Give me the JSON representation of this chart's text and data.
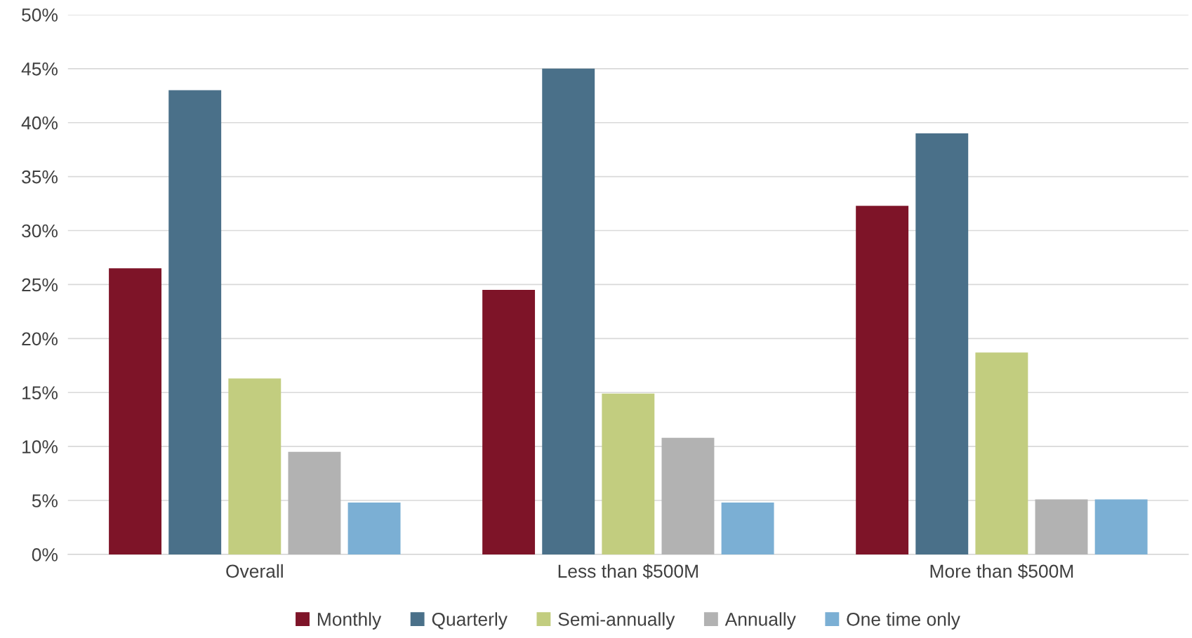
{
  "chart_data": {
    "type": "bar",
    "categories": [
      "Overall",
      "Less than $500M",
      "More than $500M"
    ],
    "series": [
      {
        "name": "Monthly",
        "color": "#7e1428",
        "values": [
          26.5,
          24.5,
          32.3
        ]
      },
      {
        "name": "Quarterly",
        "color": "#4a7089",
        "values": [
          43.0,
          45.0,
          39.0
        ]
      },
      {
        "name": "Semi-annually",
        "color": "#c2cd7f",
        "values": [
          16.3,
          14.9,
          18.7
        ]
      },
      {
        "name": "Annually",
        "color": "#b2b2b2",
        "values": [
          9.5,
          10.8,
          5.1
        ]
      },
      {
        "name": "One time only",
        "color": "#7bafd4",
        "values": [
          4.8,
          4.8,
          5.1
        ]
      }
    ],
    "ylim": [
      0,
      50
    ],
    "yticks": [
      {
        "value": 0,
        "label": "0%"
      },
      {
        "value": 5,
        "label": "5%"
      },
      {
        "value": 10,
        "label": "10%"
      },
      {
        "value": 15,
        "label": "15%"
      },
      {
        "value": 20,
        "label": "20%"
      },
      {
        "value": 25,
        "label": "25%"
      },
      {
        "value": 30,
        "label": "30%"
      },
      {
        "value": 35,
        "label": "35%"
      },
      {
        "value": 40,
        "label": "40%"
      },
      {
        "value": 45,
        "label": "45%"
      },
      {
        "value": 50,
        "label": "50%"
      }
    ],
    "grid": "y",
    "legend": "bottom"
  }
}
